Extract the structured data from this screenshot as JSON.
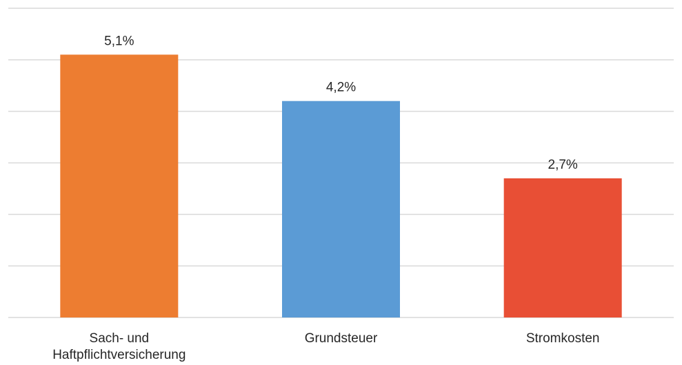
{
  "chart_data": {
    "type": "bar",
    "categories": [
      [
        "Sach- und",
        "Haftpflichtversicherung"
      ],
      [
        "Grundsteuer"
      ],
      [
        "Stromkosten"
      ]
    ],
    "values": [
      5.1,
      4.2,
      2.7
    ],
    "data_labels": [
      "5,1%",
      "4,2%",
      "2,7%"
    ],
    "bar_colors": [
      "#ed7d31",
      "#5b9bd5",
      "#e84f35"
    ],
    "ylim": [
      0,
      6
    ],
    "grid": true,
    "title": "",
    "xlabel": "",
    "ylabel": ""
  }
}
